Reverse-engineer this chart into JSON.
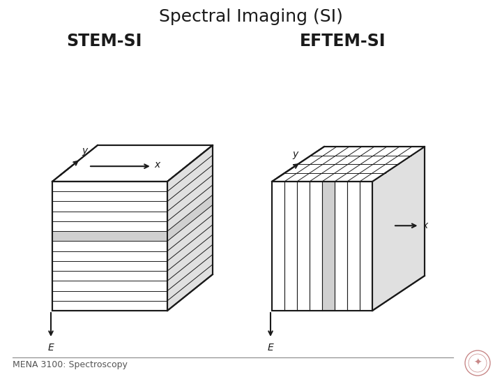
{
  "title": "Spectral Imaging (SI)",
  "title_fontsize": 18,
  "title_fontweight": "normal",
  "label_stem": "STEM-SI",
  "label_eftem": "EFTEM-SI",
  "label_fontsize": 17,
  "label_fontweight": "bold",
  "axis_label_fontsize": 10,
  "footer_text": "MENA 3100: Spectroscopy",
  "footer_fontsize": 9,
  "background_color": "#ffffff",
  "line_color": "#1a1a1a",
  "highlight_color": "#d0d0d0",
  "side_color": "#e0e0e0"
}
